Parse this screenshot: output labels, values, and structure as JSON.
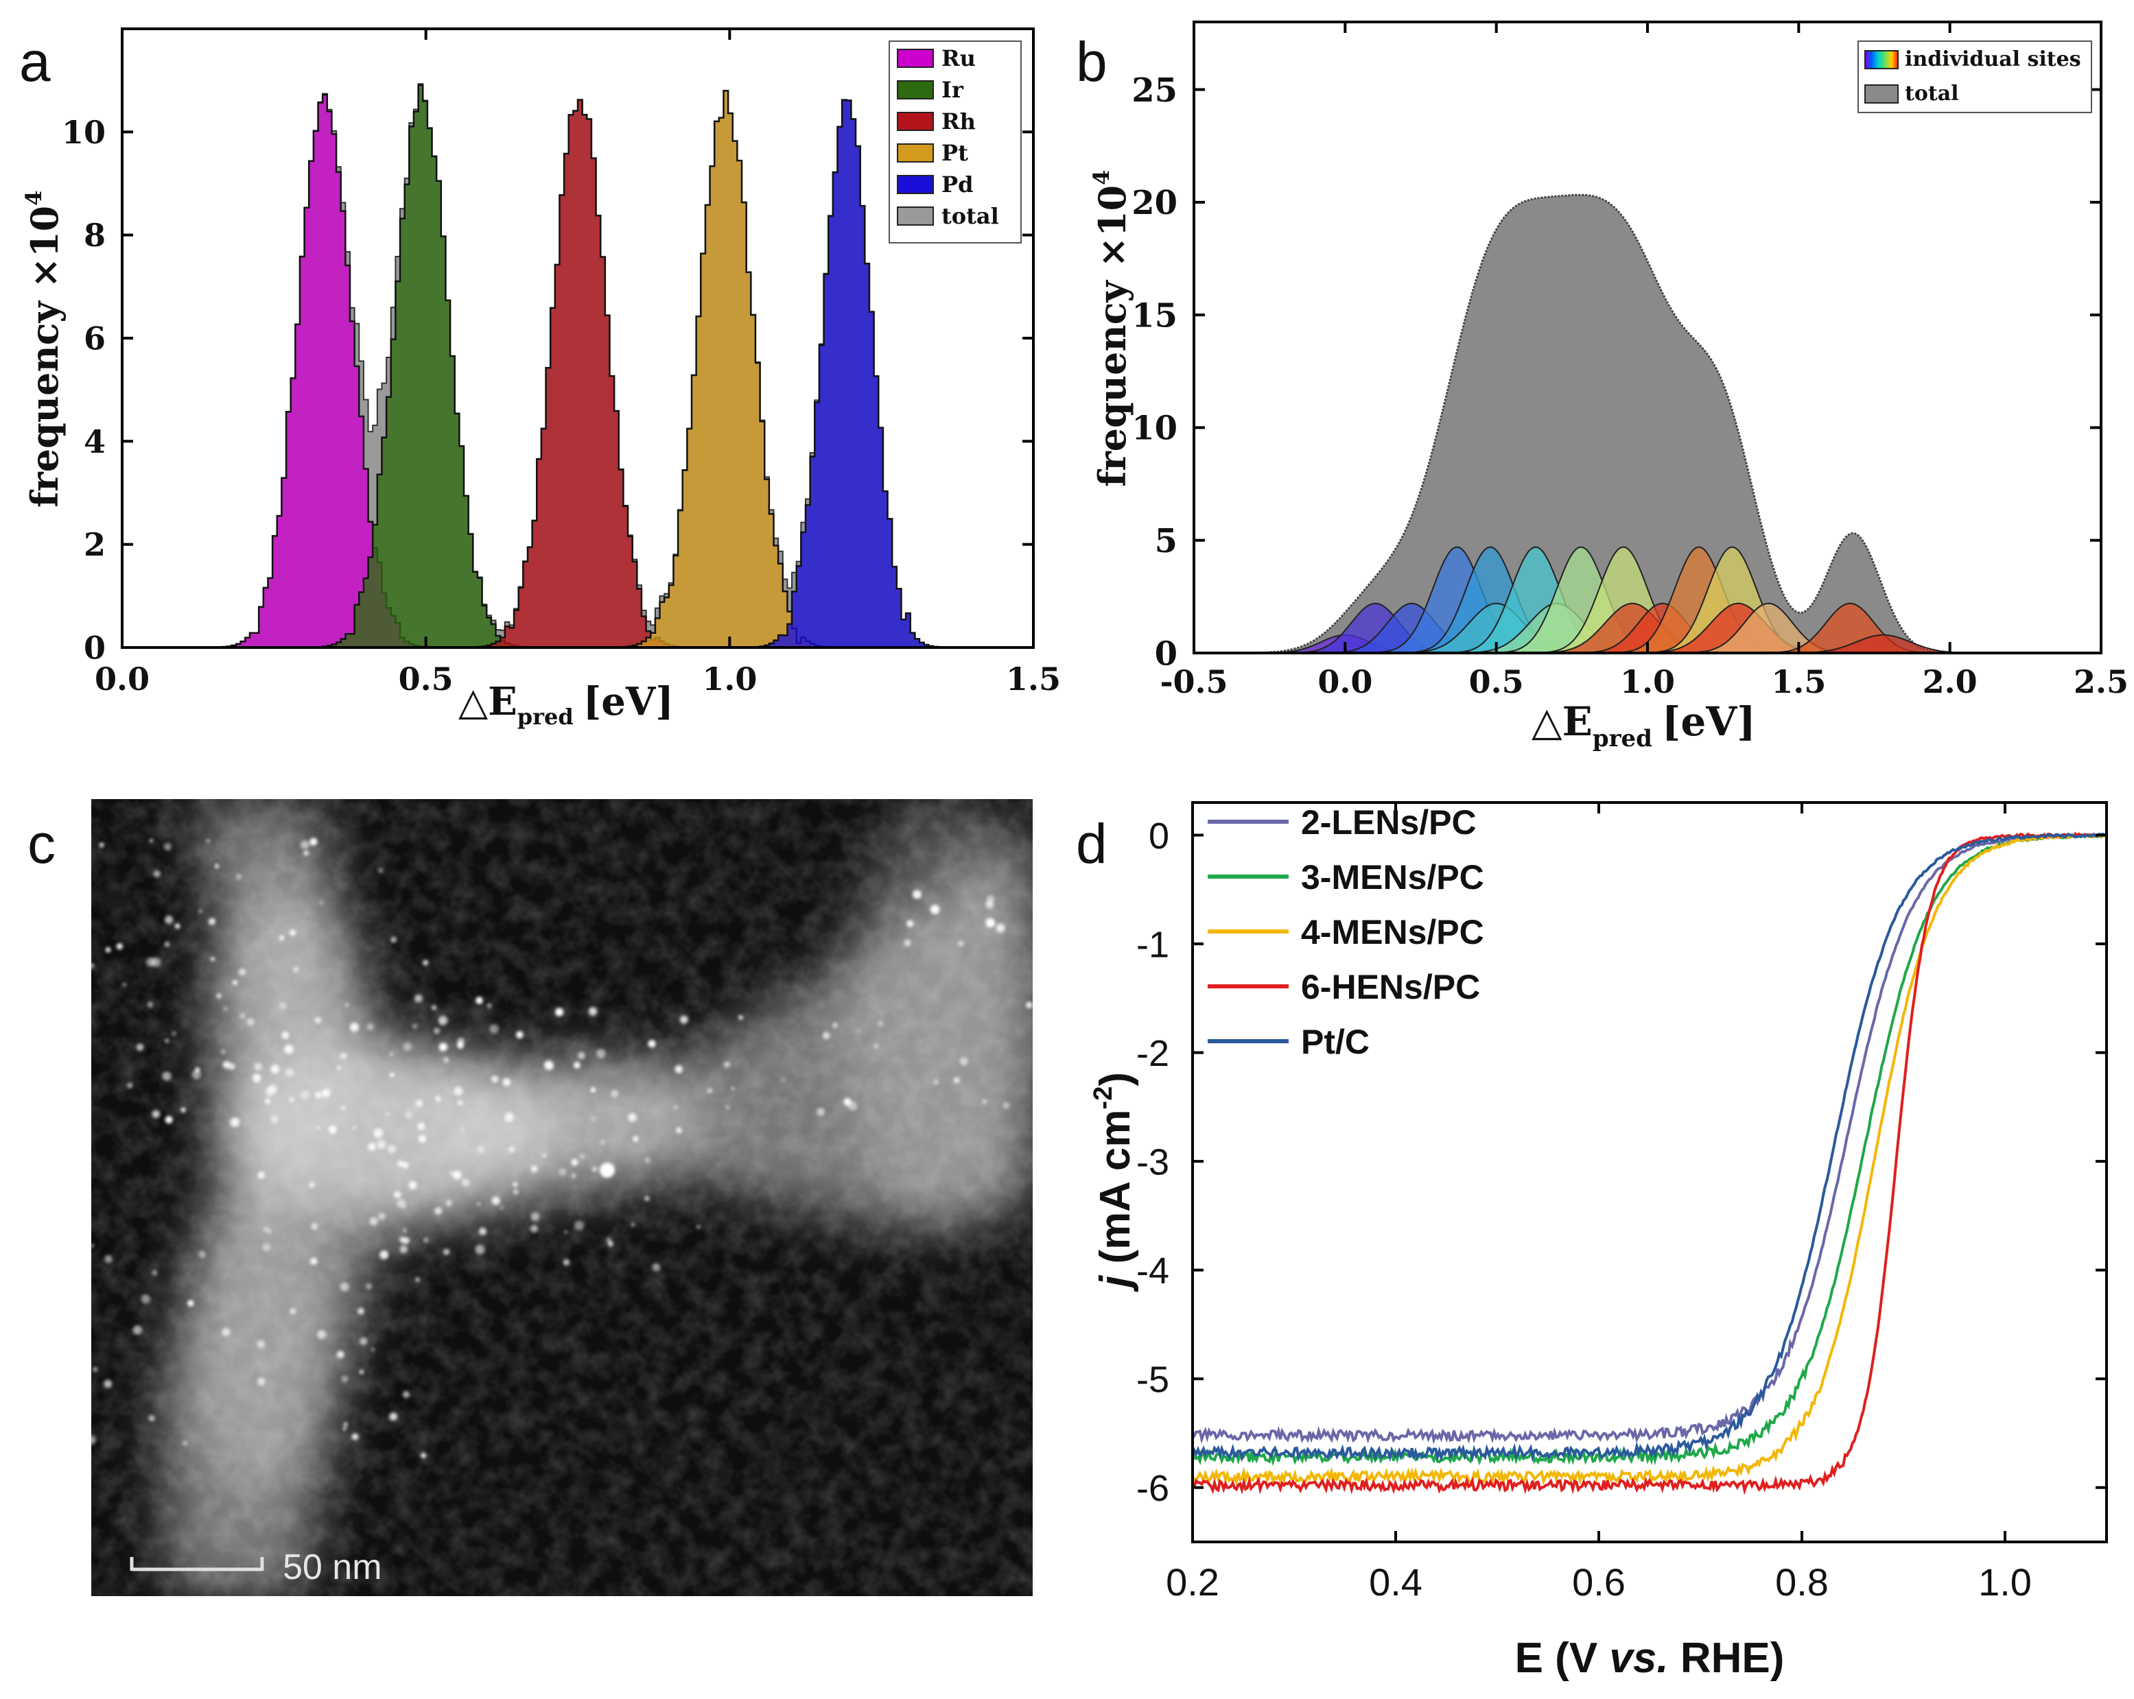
{
  "panel_labels": {
    "a": "a",
    "b": "b",
    "c": "c",
    "d": "d"
  },
  "colors": {
    "Ru": "#cc00cc",
    "Ir": "#2e6b10",
    "Rh": "#b3141b",
    "Pt": "#d49a1e",
    "Pd": "#1a0fd9",
    "total_a": "#9a9a9a",
    "total_b": "#8a8a8a",
    "LENs": "#6a68a8",
    "MENs3": "#1fa84a",
    "MENs4": "#f2b705",
    "HENs": "#e01f1f",
    "PtC": "#2b5a9c"
  },
  "chart_data": [
    {
      "id": "a",
      "type": "area",
      "xlabel_main": "△E",
      "xlabel_sub": "pred",
      "xlabel_unit": "[eV]",
      "ylabel": "frequency ×10",
      "ylabel_exp": "4",
      "xlim": [
        0,
        1.5
      ],
      "ylim": [
        0,
        12
      ],
      "xticks": [
        0.0,
        0.5,
        1.0,
        1.5
      ],
      "xtick_labels": [
        "0.0",
        "0.5",
        "1.0",
        "1.5"
      ],
      "yticks": [
        0,
        2,
        4,
        6,
        8,
        10
      ],
      "ytick_labels": [
        "0",
        "2",
        "4",
        "6",
        "8",
        "10"
      ],
      "legend_position": "top-right",
      "series": [
        {
          "name": "Ru",
          "center": 0.33,
          "sigma": 0.045,
          "peak": 10.6
        },
        {
          "name": "Ir",
          "center": 0.49,
          "sigma": 0.045,
          "peak": 10.7
        },
        {
          "name": "Rh",
          "center": 0.75,
          "sigma": 0.045,
          "peak": 10.7
        },
        {
          "name": "Pt",
          "center": 0.99,
          "sigma": 0.045,
          "peak": 10.6
        },
        {
          "name": "Pd",
          "center": 1.19,
          "sigma": 0.04,
          "peak": 10.5
        }
      ],
      "legend": [
        "Ru",
        "Ir",
        "Rh",
        "Pt",
        "Pd",
        "total"
      ]
    },
    {
      "id": "b",
      "type": "area",
      "xlabel_main": "△E",
      "xlabel_sub": "pred",
      "xlabel_unit": "[eV]",
      "ylabel": "frequency ×10",
      "ylabel_exp": "4",
      "xlim": [
        -0.5,
        2.5
      ],
      "ylim": [
        0,
        28
      ],
      "xticks": [
        -0.5,
        0.0,
        0.5,
        1.0,
        1.5,
        2.0,
        2.5
      ],
      "xtick_labels": [
        "-0.5",
        "0.0",
        "0.5",
        "1.0",
        "1.5",
        "2.0",
        "2.5"
      ],
      "yticks": [
        0,
        5,
        10,
        15,
        20,
        25
      ],
      "ytick_labels": [
        "0",
        "5",
        "10",
        "15",
        "20",
        "25"
      ],
      "legend_position": "top-right",
      "legend": [
        "individual sites",
        "total"
      ],
      "total_peaks": [
        {
          "center": 0.1,
          "sigma": 0.12,
          "height": 2.2
        },
        {
          "center": 0.45,
          "sigma": 0.16,
          "height": 12
        },
        {
          "center": 0.75,
          "sigma": 0.2,
          "height": 16
        },
        {
          "center": 1.0,
          "sigma": 0.15,
          "height": 9
        },
        {
          "center": 1.25,
          "sigma": 0.12,
          "height": 9
        },
        {
          "center": 1.68,
          "sigma": 0.09,
          "height": 5.3
        }
      ],
      "individual_sites": [
        {
          "center": 0.0,
          "sigma": 0.08,
          "height": 0.8,
          "color": "#6a2ee0"
        },
        {
          "center": 0.1,
          "sigma": 0.08,
          "height": 2.2,
          "color": "#4a35d8"
        },
        {
          "center": 0.22,
          "sigma": 0.08,
          "height": 2.2,
          "color": "#3550e0"
        },
        {
          "center": 0.37,
          "sigma": 0.08,
          "height": 4.7,
          "color": "#3a7ae0"
        },
        {
          "center": 0.48,
          "sigma": 0.08,
          "height": 4.7,
          "color": "#2f9ad8"
        },
        {
          "center": 0.5,
          "sigma": 0.09,
          "height": 2.2,
          "color": "#44b8c8"
        },
        {
          "center": 0.63,
          "sigma": 0.08,
          "height": 4.7,
          "color": "#45c8d0"
        },
        {
          "center": 0.7,
          "sigma": 0.09,
          "height": 2.2,
          "color": "#8ed8a0"
        },
        {
          "center": 0.78,
          "sigma": 0.08,
          "height": 4.7,
          "color": "#a8e090"
        },
        {
          "center": 0.92,
          "sigma": 0.08,
          "height": 4.7,
          "color": "#c8e07a"
        },
        {
          "center": 0.95,
          "sigma": 0.09,
          "height": 2.2,
          "color": "#d84020"
        },
        {
          "center": 1.05,
          "sigma": 0.08,
          "height": 2.2,
          "color": "#e03a20"
        },
        {
          "center": 1.17,
          "sigma": 0.08,
          "height": 4.7,
          "color": "#e07a30"
        },
        {
          "center": 1.28,
          "sigma": 0.08,
          "height": 4.7,
          "color": "#d8d060"
        },
        {
          "center": 1.3,
          "sigma": 0.09,
          "height": 2.2,
          "color": "#e03020"
        },
        {
          "center": 1.4,
          "sigma": 0.08,
          "height": 2.2,
          "color": "#e6b070"
        },
        {
          "center": 1.67,
          "sigma": 0.08,
          "height": 2.2,
          "color": "#e05020"
        },
        {
          "center": 1.78,
          "sigma": 0.09,
          "height": 0.8,
          "color": "#d03020"
        }
      ]
    },
    {
      "id": "d",
      "type": "line",
      "xlabel_pre": "E (V ",
      "xlabel_italic": "vs.",
      "xlabel_post": " RHE)",
      "ylabel_italic": "j",
      "ylabel_rest": " (mA cm",
      "ylabel_exp": "-2",
      "ylabel_close": ")",
      "xlim": [
        0.2,
        1.1
      ],
      "ylim": [
        -6.5,
        0.3
      ],
      "xticks": [
        0.2,
        0.4,
        0.6,
        0.8,
        1.0
      ],
      "xtick_labels": [
        "0.2",
        "0.4",
        "0.6",
        "0.8",
        "1.0"
      ],
      "yticks": [
        0,
        -1,
        -2,
        -3,
        -4,
        -5,
        -6
      ],
      "ytick_labels": [
        "0",
        "-1",
        "-2",
        "-3",
        "-4",
        "-5",
        "-6"
      ],
      "legend_position": "top-left",
      "series": [
        {
          "name": "2-LENs/PC",
          "limit": -5.52,
          "half_wave": 0.845,
          "width": 0.032,
          "color_key": "LENs"
        },
        {
          "name": "3-MENs/PC",
          "limit": -5.72,
          "half_wave": 0.862,
          "width": 0.032,
          "color_key": "MENs3"
        },
        {
          "name": "4-MENs/PC",
          "limit": -5.9,
          "half_wave": 0.872,
          "width": 0.03,
          "color_key": "MENs4"
        },
        {
          "name": "6-HENs/PC",
          "limit": -5.98,
          "half_wave": 0.893,
          "width": 0.016,
          "color_key": "HENs"
        },
        {
          "name": "Pt/C",
          "limit": -5.68,
          "half_wave": 0.832,
          "width": 0.032,
          "color_key": "PtC"
        }
      ]
    }
  ],
  "micrograph": {
    "scale_bar_label": "50 nm"
  }
}
